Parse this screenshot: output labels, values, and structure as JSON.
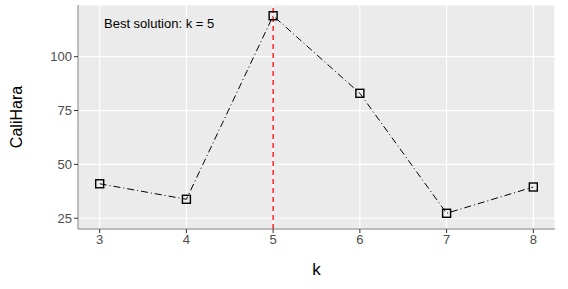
{
  "chart_data": {
    "type": "line",
    "x_label": "k",
    "y_label": "CaliHara",
    "annotation": "Best solution: k = 5",
    "x": [
      3,
      4,
      5,
      6,
      7,
      8
    ],
    "values": [
      41,
      33.8,
      119,
      83,
      27.3,
      39.5
    ],
    "color": "#000000",
    "marker": "square",
    "line_style": "dashdot",
    "vline": 5,
    "vline_color": "#ff0000",
    "xlim": [
      2.75,
      8.25
    ],
    "xticks": [
      3,
      4,
      5,
      6,
      7,
      8
    ],
    "ylim": [
      20,
      124
    ],
    "yticks": [
      25,
      50,
      75,
      100
    ],
    "grid": true
  }
}
